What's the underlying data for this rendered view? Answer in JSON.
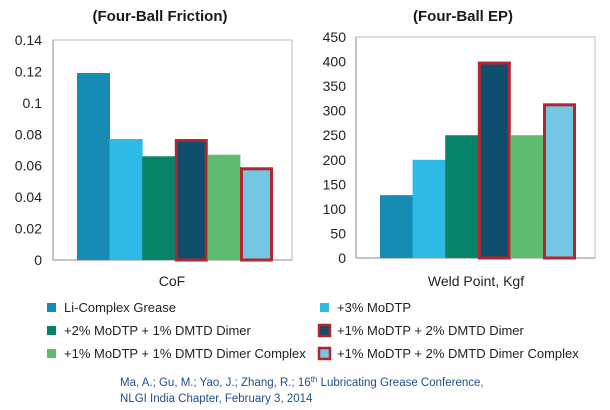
{
  "colors": {
    "li_complex": "#168bb3",
    "modtp3": "#2ebae6",
    "modtp2_dmtd1": "#078467",
    "modtp1_dmtd2": "#0f4e6c",
    "modtp1_dmtd1_complex": "#5ebc6e",
    "modtp1_dmtd2_complex": "#74c7e2",
    "highlight_border": "#b3262d"
  },
  "chart_data": [
    {
      "type": "bar",
      "title": "(Four-Ball Friction)",
      "xlabel": "CoF",
      "ylabel": "",
      "ylim": [
        0,
        0.14
      ],
      "yticks": [
        "0.14",
        "0.12",
        "0.1",
        "0.08",
        "0.06",
        "0.04",
        "0.02",
        "0"
      ],
      "ytick_values": [
        0.14,
        0.12,
        0.1,
        0.08,
        0.06,
        0.04,
        0.02,
        0
      ],
      "categories": [
        "CoF"
      ],
      "series": [
        {
          "name": "Li-Complex Grease",
          "values": [
            0.119
          ],
          "color": "#168bb3",
          "outlined": false
        },
        {
          "name": "+3% MoDTP",
          "values": [
            0.077
          ],
          "color": "#2ebae6",
          "outlined": false
        },
        {
          "name": "+2% MoDTP + 1% DMTD Dimer",
          "values": [
            0.066
          ],
          "color": "#078467",
          "outlined": false
        },
        {
          "name": "+1% MoDTP + 2% DMTD Dimer",
          "values": [
            0.077
          ],
          "color": "#0f4e6c",
          "outlined": true
        },
        {
          "name": "+1% MoDTP + 1% DMTD Dimer Complex",
          "values": [
            0.067
          ],
          "color": "#5ebc6e",
          "outlined": false
        },
        {
          "name": "+1% MoDTP + 2% DMTD Dimer Complex",
          "values": [
            0.059
          ],
          "color": "#74c7e2",
          "outlined": true
        }
      ],
      "grid": false,
      "legend": "bottom"
    },
    {
      "type": "bar",
      "title": "(Four-Ball EP)",
      "xlabel": "Weld Point, Kgf",
      "ylabel": "",
      "ylim": [
        0,
        450
      ],
      "yticks": [
        "450",
        "400",
        "350",
        "300",
        "250",
        "200",
        "150",
        "100",
        "50",
        "0"
      ],
      "ytick_values": [
        450,
        400,
        350,
        300,
        250,
        200,
        150,
        100,
        50,
        0
      ],
      "categories": [
        "Weld Point, Kgf"
      ],
      "series": [
        {
          "name": "Li-Complex Grease",
          "values": [
            128
          ],
          "color": "#168bb3",
          "outlined": false
        },
        {
          "name": "+3% MoDTP",
          "values": [
            200
          ],
          "color": "#2ebae6",
          "outlined": false
        },
        {
          "name": "+2% MoDTP + 1% DMTD Dimer",
          "values": [
            250
          ],
          "color": "#078467",
          "outlined": false
        },
        {
          "name": "+1% MoDTP + 2% DMTD Dimer",
          "values": [
            400
          ],
          "color": "#0f4e6c",
          "outlined": true
        },
        {
          "name": "+1% MoDTP + 1% DMTD Dimer Complex",
          "values": [
            250
          ],
          "color": "#5ebc6e",
          "outlined": false
        },
        {
          "name": "+1% MoDTP + 2% DMTD Dimer Complex",
          "values": [
            315
          ],
          "color": "#74c7e2",
          "outlined": true
        }
      ],
      "grid": false,
      "legend": "bottom"
    }
  ],
  "legend": {
    "items": [
      {
        "label": "Li-Complex Grease",
        "color": "#168bb3",
        "outlined": false
      },
      {
        "label": "+3% MoDTP",
        "color": "#2ebae6",
        "outlined": false
      },
      {
        "label": "+2% MoDTP + 1% DMTD Dimer",
        "color": "#078467",
        "outlined": false
      },
      {
        "label": "+1% MoDTP + 2% DMTD Dimer",
        "color": "#0f4e6c",
        "outlined": true
      },
      {
        "label": "+1% MoDTP + 1% DMTD Dimer Complex",
        "color": "#5ebc6e",
        "outlined": false
      },
      {
        "label": "+1% MoDTP + 2% DMTD Dimer Complex",
        "color": "#74c7e2",
        "outlined": true
      }
    ]
  },
  "citation": {
    "line1_a": "Ma, A.; Gu, M.; Yao, J.; Zhang, R.; 16",
    "line1_sup": "th",
    "line1_b": " Lubricating Grease Conference,",
    "line2": "NLGI India Chapter, February 3, 2014"
  }
}
